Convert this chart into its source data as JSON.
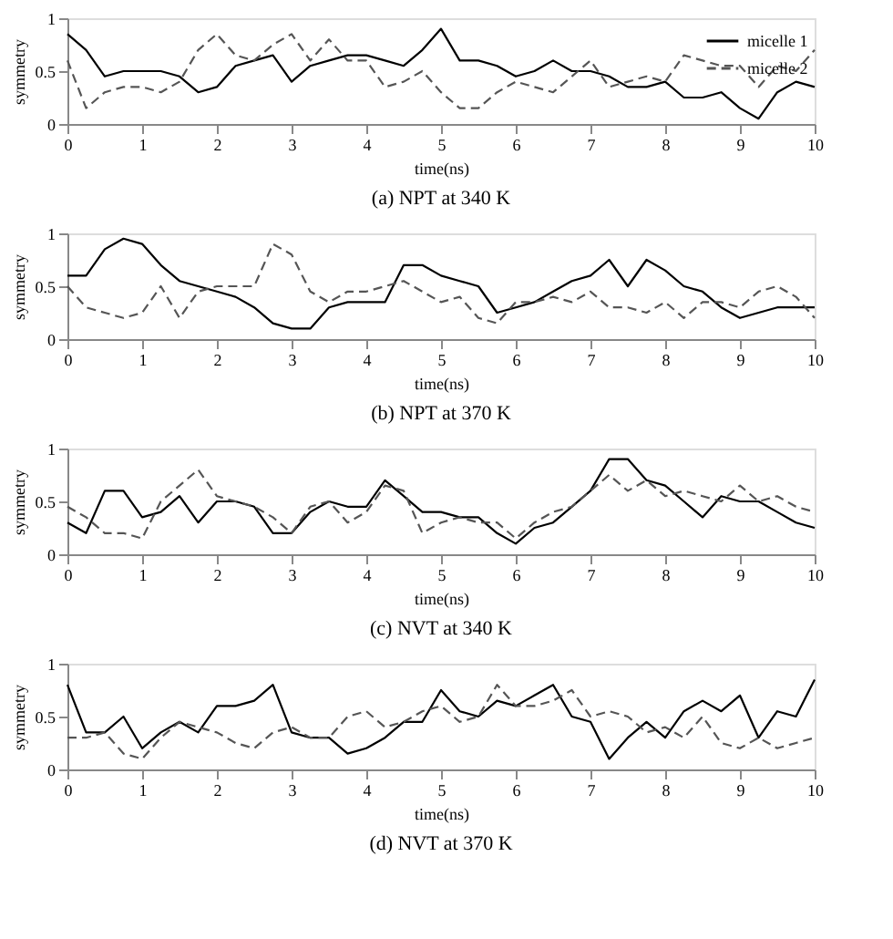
{
  "chart_data": [
    {
      "type": "line",
      "title": "(a) NPT at 340 K",
      "xlabel": "time(ns)",
      "ylabel": "symmetry",
      "xlim": [
        0,
        10
      ],
      "ylim": [
        0,
        1
      ],
      "xticks": [
        0,
        1,
        2,
        3,
        4,
        5,
        6,
        7,
        8,
        9,
        10
      ],
      "yticks": [
        0,
        0.5,
        1
      ],
      "legend": "top right",
      "grid": false,
      "x": [
        0,
        0.25,
        0.5,
        0.75,
        1,
        1.25,
        1.5,
        1.75,
        2,
        2.25,
        2.5,
        2.75,
        3,
        3.25,
        3.5,
        3.75,
        4,
        4.25,
        4.5,
        4.75,
        5,
        5.25,
        5.5,
        5.75,
        6,
        6.25,
        6.5,
        6.75,
        7,
        7.25,
        7.5,
        7.75,
        8,
        8.25,
        8.5,
        8.75,
        9,
        9.25,
        9.5,
        9.75,
        10
      ],
      "series": [
        {
          "name": "micelle 1",
          "color": "#000000",
          "line_style": "solid",
          "values": [
            0.85,
            0.7,
            0.45,
            0.5,
            0.5,
            0.5,
            0.45,
            0.3,
            0.35,
            0.55,
            0.6,
            0.65,
            0.4,
            0.55,
            0.6,
            0.65,
            0.65,
            0.6,
            0.55,
            0.7,
            0.9,
            0.6,
            0.6,
            0.55,
            0.45,
            0.5,
            0.6,
            0.5,
            0.5,
            0.45,
            0.35,
            0.35,
            0.4,
            0.25,
            0.25,
            0.3,
            0.15,
            0.05,
            0.3,
            0.4,
            0.35
          ]
        },
        {
          "name": "micelle 2",
          "color": "#555555",
          "line_style": "dashed",
          "values": [
            0.6,
            0.15,
            0.3,
            0.35,
            0.35,
            0.3,
            0.4,
            0.7,
            0.85,
            0.65,
            0.6,
            0.75,
            0.85,
            0.6,
            0.8,
            0.6,
            0.6,
            0.35,
            0.4,
            0.5,
            0.3,
            0.15,
            0.15,
            0.3,
            0.4,
            0.35,
            0.3,
            0.45,
            0.6,
            0.35,
            0.4,
            0.45,
            0.4,
            0.65,
            0.6,
            0.55,
            0.55,
            0.35,
            0.55,
            0.5,
            0.7
          ]
        }
      ]
    },
    {
      "type": "line",
      "title": "(b) NPT at 370 K",
      "xlabel": "time(ns)",
      "ylabel": "symmetry",
      "xlim": [
        0,
        10
      ],
      "ylim": [
        0,
        1
      ],
      "xticks": [
        0,
        1,
        2,
        3,
        4,
        5,
        6,
        7,
        8,
        9,
        10
      ],
      "yticks": [
        0,
        0.5,
        1
      ],
      "legend": "top right",
      "grid": false,
      "x": [
        0,
        0.25,
        0.5,
        0.75,
        1,
        1.25,
        1.5,
        1.75,
        2,
        2.25,
        2.5,
        2.75,
        3,
        3.25,
        3.5,
        3.75,
        4,
        4.25,
        4.5,
        4.75,
        5,
        5.25,
        5.5,
        5.75,
        6,
        6.25,
        6.5,
        6.75,
        7,
        7.25,
        7.5,
        7.75,
        8,
        8.25,
        8.5,
        8.75,
        9,
        9.25,
        9.5,
        9.75,
        10
      ],
      "series": [
        {
          "name": "micelle 1",
          "color": "#000000",
          "line_style": "solid",
          "values": [
            0.6,
            0.6,
            0.85,
            0.95,
            0.9,
            0.7,
            0.55,
            0.5,
            0.45,
            0.4,
            0.3,
            0.15,
            0.1,
            0.1,
            0.3,
            0.35,
            0.35,
            0.35,
            0.7,
            0.7,
            0.6,
            0.55,
            0.5,
            0.25,
            0.3,
            0.35,
            0.45,
            0.55,
            0.6,
            0.75,
            0.5,
            0.75,
            0.65,
            0.5,
            0.45,
            0.3,
            0.2,
            0.25,
            0.3,
            0.3,
            0.3
          ]
        },
        {
          "name": "micelle 2",
          "color": "#555555",
          "line_style": "dashed",
          "values": [
            0.5,
            0.3,
            0.25,
            0.2,
            0.25,
            0.5,
            0.2,
            0.45,
            0.5,
            0.5,
            0.5,
            0.9,
            0.8,
            0.45,
            0.35,
            0.45,
            0.45,
            0.5,
            0.55,
            0.45,
            0.35,
            0.4,
            0.2,
            0.15,
            0.35,
            0.35,
            0.4,
            0.35,
            0.45,
            0.3,
            0.3,
            0.25,
            0.35,
            0.2,
            0.35,
            0.35,
            0.3,
            0.45,
            0.5,
            0.4,
            0.2
          ]
        }
      ]
    },
    {
      "type": "line",
      "title": "(c) NVT at 340 K",
      "xlabel": "time(ns)",
      "ylabel": "symmetry",
      "xlim": [
        0,
        10
      ],
      "ylim": [
        0,
        1
      ],
      "xticks": [
        0,
        1,
        2,
        3,
        4,
        5,
        6,
        7,
        8,
        9,
        10
      ],
      "yticks": [
        0,
        0.5,
        1
      ],
      "legend": "top right",
      "grid": false,
      "x": [
        0,
        0.25,
        0.5,
        0.75,
        1,
        1.25,
        1.5,
        1.75,
        2,
        2.25,
        2.5,
        2.75,
        3,
        3.25,
        3.5,
        3.75,
        4,
        4.25,
        4.5,
        4.75,
        5,
        5.25,
        5.5,
        5.75,
        6,
        6.25,
        6.5,
        6.75,
        7,
        7.25,
        7.5,
        7.75,
        8,
        8.25,
        8.5,
        8.75,
        9,
        9.25,
        9.5,
        9.75,
        10
      ],
      "series": [
        {
          "name": "micelle 1",
          "color": "#000000",
          "line_style": "solid",
          "values": [
            0.3,
            0.2,
            0.6,
            0.6,
            0.35,
            0.4,
            0.55,
            0.3,
            0.5,
            0.5,
            0.45,
            0.2,
            0.2,
            0.4,
            0.5,
            0.45,
            0.45,
            0.7,
            0.55,
            0.4,
            0.4,
            0.35,
            0.35,
            0.2,
            0.1,
            0.25,
            0.3,
            0.45,
            0.6,
            0.9,
            0.9,
            0.7,
            0.65,
            0.5,
            0.35,
            0.55,
            0.5,
            0.5,
            0.4,
            0.3,
            0.25
          ]
        },
        {
          "name": "micelle 2",
          "color": "#555555",
          "line_style": "dashed",
          "values": [
            0.45,
            0.35,
            0.2,
            0.2,
            0.15,
            0.5,
            0.65,
            0.8,
            0.55,
            0.5,
            0.45,
            0.35,
            0.2,
            0.45,
            0.5,
            0.3,
            0.4,
            0.65,
            0.6,
            0.2,
            0.3,
            0.35,
            0.3,
            0.3,
            0.15,
            0.3,
            0.4,
            0.45,
            0.6,
            0.75,
            0.6,
            0.7,
            0.55,
            0.6,
            0.55,
            0.5,
            0.65,
            0.5,
            0.55,
            0.45,
            0.4
          ]
        }
      ]
    },
    {
      "type": "line",
      "title": "(d) NVT at 370 K",
      "xlabel": "time(ns)",
      "ylabel": "symmetry",
      "xlim": [
        0,
        10
      ],
      "ylim": [
        0,
        1
      ],
      "xticks": [
        0,
        1,
        2,
        3,
        4,
        5,
        6,
        7,
        8,
        9,
        10
      ],
      "yticks": [
        0,
        0.5,
        1
      ],
      "legend": "top right",
      "grid": false,
      "x": [
        0,
        0.25,
        0.5,
        0.75,
        1,
        1.25,
        1.5,
        1.75,
        2,
        2.25,
        2.5,
        2.75,
        3,
        3.25,
        3.5,
        3.75,
        4,
        4.25,
        4.5,
        4.75,
        5,
        5.25,
        5.5,
        5.75,
        6,
        6.25,
        6.5,
        6.75,
        7,
        7.25,
        7.5,
        7.75,
        8,
        8.25,
        8.5,
        8.75,
        9,
        9.25,
        9.5,
        9.75,
        10
      ],
      "series": [
        {
          "name": "micelle 1",
          "color": "#000000",
          "line_style": "solid",
          "values": [
            0.8,
            0.35,
            0.35,
            0.5,
            0.2,
            0.35,
            0.45,
            0.35,
            0.6,
            0.6,
            0.65,
            0.8,
            0.35,
            0.3,
            0.3,
            0.15,
            0.2,
            0.3,
            0.45,
            0.45,
            0.75,
            0.55,
            0.5,
            0.65,
            0.6,
            0.7,
            0.8,
            0.5,
            0.45,
            0.1,
            0.3,
            0.45,
            0.3,
            0.55,
            0.65,
            0.55,
            0.7,
            0.3,
            0.55,
            0.5,
            0.85
          ]
        },
        {
          "name": "micelle 2",
          "color": "#555555",
          "line_style": "dashed",
          "values": [
            0.3,
            0.3,
            0.35,
            0.15,
            0.1,
            0.3,
            0.45,
            0.4,
            0.35,
            0.25,
            0.2,
            0.35,
            0.4,
            0.3,
            0.3,
            0.5,
            0.55,
            0.4,
            0.45,
            0.55,
            0.6,
            0.45,
            0.5,
            0.8,
            0.6,
            0.6,
            0.65,
            0.75,
            0.5,
            0.55,
            0.5,
            0.35,
            0.4,
            0.3,
            0.5,
            0.25,
            0.2,
            0.3,
            0.2,
            0.25,
            0.3
          ]
        }
      ]
    }
  ]
}
